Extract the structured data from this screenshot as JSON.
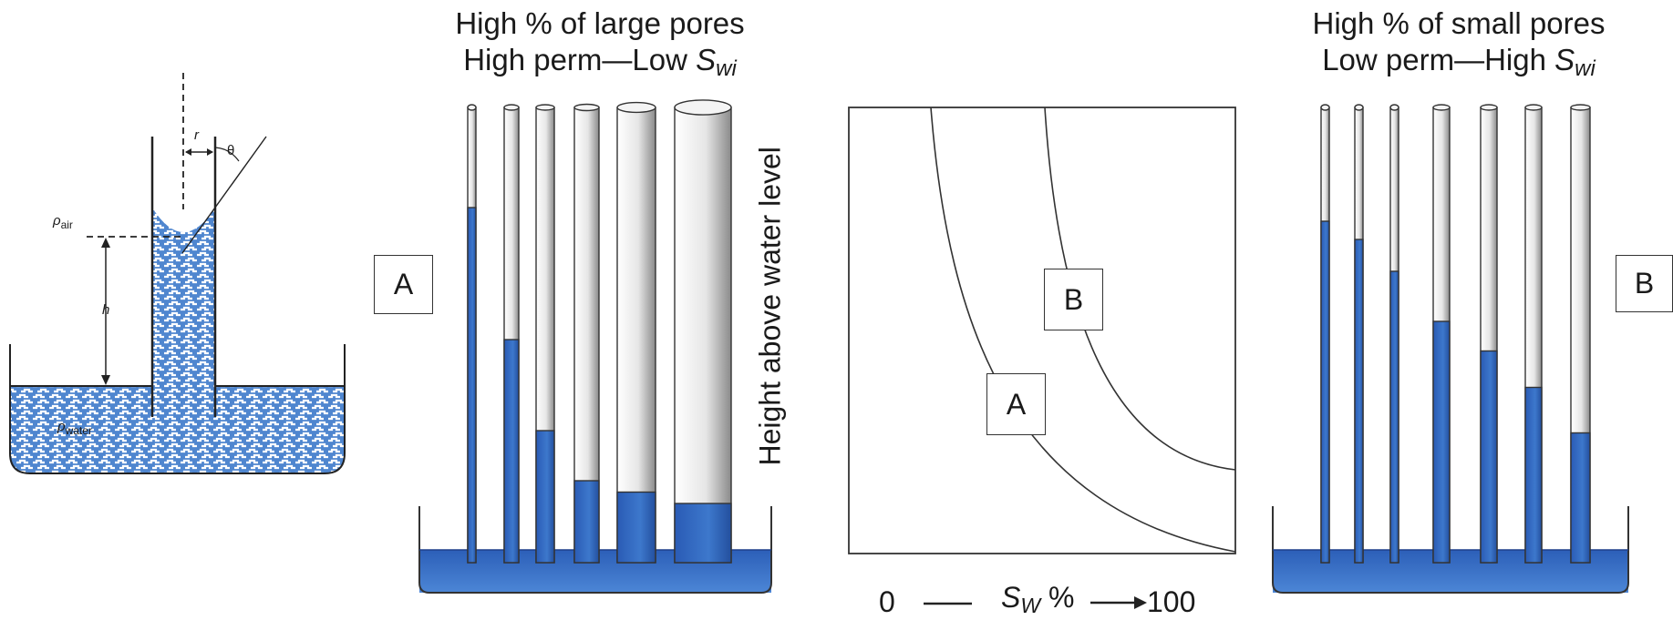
{
  "capillary": {
    "rho_air": "ρ",
    "air_sub": "air",
    "rho_water": "ρ",
    "water_sub": "water",
    "r_label": "r",
    "theta_label": "θ",
    "h_label": "h"
  },
  "left_panel": {
    "title_line1": "High % of large pores",
    "title_line2_prefix": "High perm—Low ",
    "title_var": "S",
    "title_sub": "wi",
    "label": "A",
    "tubes": [
      {
        "fill": 0.78
      },
      {
        "fill": 0.49
      },
      {
        "fill": 0.29
      },
      {
        "fill": 0.18
      },
      {
        "fill": 0.155
      },
      {
        "fill": 0.13
      }
    ]
  },
  "right_panel": {
    "title_line1": "High % of small pores",
    "title_line2_prefix": "Low perm—High ",
    "title_var": "S",
    "title_sub": "wi",
    "label": "B",
    "tubes": [
      {
        "fill": 0.75
      },
      {
        "fill": 0.71
      },
      {
        "fill": 0.64
      },
      {
        "fill": 0.53
      },
      {
        "fill": 0.465
      },
      {
        "fill": 0.385
      },
      {
        "fill": 0.285
      }
    ]
  },
  "center_chart": {
    "ylabel": "Height above water level",
    "x_start": "0",
    "x_var": "S",
    "x_sub": "W",
    "x_percent": "%",
    "x_end": "100",
    "curve_a_label": "A",
    "curve_b_label": "B"
  },
  "colors": {
    "water": "#2f61b8",
    "water_dark": "#1f4aa0",
    "outline": "#333333"
  }
}
